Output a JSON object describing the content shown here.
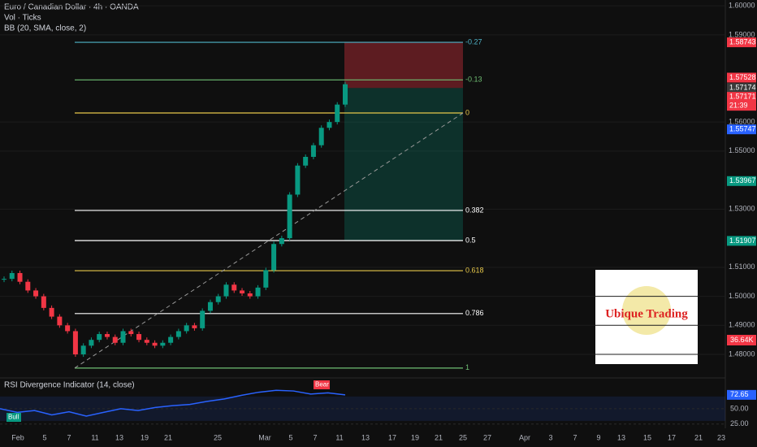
{
  "header": {
    "symbol": "Euro / Canadian Dollar · 4h · OANDA",
    "volume": "Vol · Ticks",
    "bollinger": "BB (20, SMA, close, 2)",
    "volume_badge": "36.64K",
    "logo": "Ubique Trading"
  },
  "chart_data": {
    "type": "candlestick",
    "closes": [
      1.506,
      1.508,
      1.505,
      1.502,
      1.5,
      1.496,
      1.493,
      1.49,
      1.488,
      1.48,
      1.483,
      1.485,
      1.487,
      1.486,
      1.484,
      1.488,
      1.487,
      1.485,
      1.484,
      1.483,
      1.484,
      1.486,
      1.488,
      1.49,
      1.489,
      1.495,
      1.498,
      1.5,
      1.504,
      1.502,
      1.501,
      1.5,
      1.503,
      1.509,
      1.518,
      1.52,
      1.535,
      1.545,
      1.548,
      1.552,
      1.558,
      1.56,
      1.566,
      1.573
    ],
    "ylim": [
      1.4719,
      1.602
    ],
    "yticks": [
      {
        "value": 1.6,
        "label": "1.60000"
      },
      {
        "value": 1.59,
        "label": "1.59000"
      },
      {
        "value": 1.56,
        "label": "1.56000"
      },
      {
        "value": 1.55,
        "label": "1.55000"
      },
      {
        "value": 1.53,
        "label": "1.53000"
      },
      {
        "value": 1.51,
        "label": "1.51000"
      },
      {
        "value": 1.5,
        "label": "1.50000"
      },
      {
        "value": 1.49,
        "label": "1.49000"
      },
      {
        "value": 1.48,
        "label": "1.48000"
      }
    ],
    "price_badges": [
      {
        "value": 1.58743,
        "label": "1.58743",
        "color": "#f23645"
      },
      {
        "value": 1.57528,
        "label": "1.57528",
        "color": "#f23645"
      },
      {
        "value": 1.57174,
        "label": "1.57174",
        "color": "#3a3a3a"
      },
      {
        "value": 1.57171,
        "label": "1.57171",
        "color": "#f23645",
        "timer": "21:39"
      },
      {
        "value": 1.55747,
        "label": "1.55747",
        "color": "#2962ff"
      },
      {
        "value": 1.53967,
        "label": "1.53967",
        "color": "#089981"
      },
      {
        "value": 1.51907,
        "label": "1.51907",
        "color": "#089981"
      }
    ],
    "fib_levels": [
      {
        "label": "-0.27",
        "value": 1.58743,
        "color": "#4fb3c8"
      },
      {
        "label": "-0.13",
        "value": 1.5745,
        "color": "#6fbf73"
      },
      {
        "label": "0",
        "value": 1.5631,
        "color": "#e6c84a"
      },
      {
        "label": "0.382",
        "value": 1.52955,
        "color": "#ffffff"
      },
      {
        "label": "0.5",
        "value": 1.51918,
        "color": "#ffffff"
      },
      {
        "label": "0.618",
        "value": 1.50882,
        "color": "#e6c84a"
      },
      {
        "label": "0.786",
        "value": 1.49406,
        "color": "#ffffff"
      },
      {
        "label": "1",
        "value": 1.4753,
        "color": "#6fbf73"
      }
    ],
    "position": {
      "stop": 1.58743,
      "entry": 1.57171,
      "target": 1.51907
    },
    "x_labels": [
      "Feb",
      "5",
      "7",
      "11",
      "13",
      "19",
      "21",
      "25",
      "Mar",
      "5",
      "7",
      "11",
      "13",
      "17",
      "19",
      "21",
      "25",
      "27",
      "Apr",
      "3",
      "7",
      "9",
      "13",
      "15",
      "17",
      "21",
      "23"
    ]
  },
  "rsi": {
    "title": "RSI Divergence Indicator (14, close)",
    "values": [
      50,
      44,
      47,
      40,
      45,
      38,
      44,
      50,
      47,
      52,
      55,
      57,
      62,
      66,
      72,
      77,
      80,
      79,
      74,
      76,
      72.65
    ],
    "ylim": [
      18,
      99
    ],
    "yticks": [
      {
        "value": 50,
        "label": "50.00"
      },
      {
        "value": 25,
        "label": "25.00"
      }
    ],
    "last": {
      "value": 72.65,
      "label": "72.65"
    },
    "bull": "Bull",
    "bear": "Bear"
  }
}
